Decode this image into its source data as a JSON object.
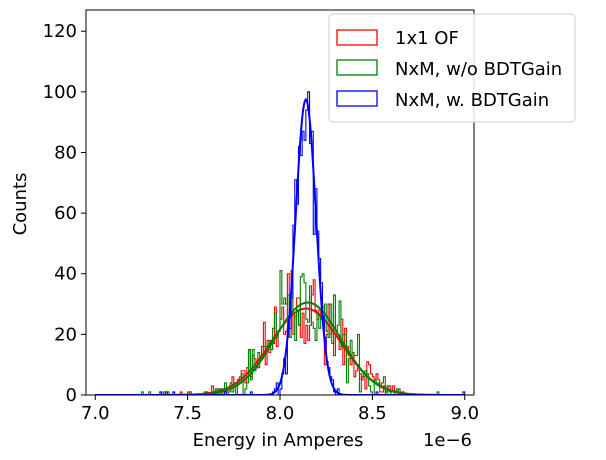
{
  "chart_data": {
    "type": "histogram",
    "title": "",
    "xlabel": "Energy in Amperes",
    "ylabel": "Counts",
    "x_offset_label": "1e−6",
    "xlim": [
      6.95,
      9.05
    ],
    "ylim": [
      0,
      127
    ],
    "xticks": [
      7.0,
      7.5,
      8.0,
      8.5,
      9.0
    ],
    "xtick_labels": [
      "7.0",
      "7.5",
      "8.0",
      "8.5",
      "9.0"
    ],
    "yticks": [
      0,
      20,
      40,
      60,
      80,
      100,
      120
    ],
    "ytick_labels": [
      "0",
      "20",
      "40",
      "60",
      "80",
      "100",
      "120"
    ],
    "legend_position": "top-right",
    "bin_start": 7.0,
    "bin_end": 9.0,
    "bins": 200,
    "series": [
      {
        "name": "1x1 OF",
        "color": "#ff0000",
        "fit": {
          "amplitude": 28.5,
          "mean": 8.14,
          "sigma": 0.19
        },
        "noise_seed": 11,
        "noise_scale": 0.32
      },
      {
        "name": "NxM, w/o BDTGain",
        "color": "#008000",
        "fit": {
          "amplitude": 30.5,
          "mean": 8.15,
          "sigma": 0.18
        },
        "noise_seed": 23,
        "noise_scale": 0.3
      },
      {
        "name": "NxM, w. BDTGain",
        "color": "#0000ff",
        "fit": {
          "amplitude": 97.5,
          "mean": 8.14,
          "sigma": 0.055
        },
        "noise_seed": 37,
        "noise_scale": 0.25
      }
    ]
  }
}
